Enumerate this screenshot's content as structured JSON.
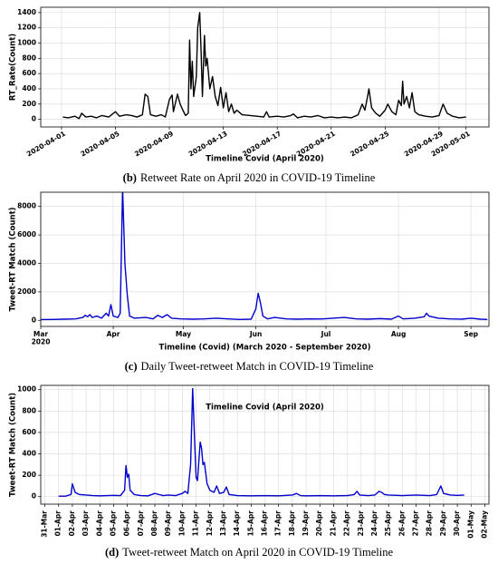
{
  "chart_data": [
    {
      "type": "line",
      "caption_label": "(b)",
      "caption": "Retweet Rate on April 2020 in COVID-19 Timeline",
      "xlabel": "Timeline Covid (April 2020)",
      "ylabel": "RT_Rate(Count)",
      "xlim": [
        -0.54,
        32.7
      ],
      "ylim": [
        -100,
        1470
      ],
      "xticks": [
        {
          "value": 1,
          "label": "2020-04-01"
        },
        {
          "value": 5,
          "label": "2020-04-05"
        },
        {
          "value": 9,
          "label": "2020-04-09"
        },
        {
          "value": 13,
          "label": "2020-04-13"
        },
        {
          "value": 17,
          "label": "2020-04-17"
        },
        {
          "value": 21,
          "label": "2020-04-21"
        },
        {
          "value": 25,
          "label": "2020-04-25"
        },
        {
          "value": 29,
          "label": "2020-04-29"
        },
        {
          "value": 31,
          "label": "2020-05-01"
        }
      ],
      "yticks": [
        0,
        200,
        400,
        600,
        800,
        1000,
        1200,
        1400
      ],
      "grid": true,
      "series": [
        {
          "color": "#000000",
          "x": [
            1.1,
            1.5,
            2,
            2.3,
            2.5,
            2.8,
            3.2,
            3.6,
            4,
            4.5,
            5,
            5.3,
            5.8,
            6.2,
            6.6,
            7,
            7.2,
            7.4,
            7.6,
            8,
            8.4,
            8.7,
            9,
            9.2,
            9.3,
            9.6,
            9.8,
            10,
            10.2,
            10.4,
            10.5,
            10.6,
            10.7,
            10.8,
            11,
            11.1,
            11.25,
            11.35,
            11.45,
            11.6,
            11.7,
            11.8,
            12,
            12.2,
            12.4,
            12.6,
            12.8,
            13,
            13.2,
            13.4,
            13.6,
            13.8,
            14,
            14.4,
            15,
            15.5,
            16,
            16.2,
            16.4,
            17,
            17.5,
            18,
            18.2,
            18.5,
            19,
            19.5,
            20,
            20.5,
            21,
            21.5,
            22,
            22.5,
            23,
            23.3,
            23.5,
            23.7,
            23.8,
            24,
            24.3,
            24.6,
            25,
            25.2,
            25.5,
            25.8,
            26,
            26.2,
            26.3,
            26.4,
            26.6,
            26.8,
            27,
            27.2,
            27.5,
            28,
            28.5,
            29,
            29.3,
            29.6,
            30,
            30.5,
            31
          ],
          "values": [
            30,
            20,
            40,
            10,
            80,
            30,
            40,
            20,
            50,
            30,
            100,
            40,
            60,
            50,
            30,
            60,
            330,
            300,
            60,
            40,
            60,
            30,
            260,
            320,
            100,
            330,
            200,
            120,
            50,
            80,
            1040,
            400,
            760,
            300,
            560,
            1200,
            1400,
            900,
            300,
            1100,
            700,
            800,
            400,
            560,
            300,
            180,
            420,
            150,
            350,
            100,
            200,
            80,
            120,
            60,
            50,
            40,
            30,
            100,
            30,
            40,
            30,
            50,
            70,
            20,
            40,
            30,
            50,
            20,
            30,
            20,
            30,
            20,
            60,
            200,
            120,
            300,
            400,
            150,
            80,
            40,
            120,
            200,
            100,
            60,
            250,
            180,
            500,
            200,
            300,
            150,
            350,
            100,
            60,
            40,
            30,
            50,
            200,
            80,
            40,
            20,
            30
          ]
        }
      ]
    },
    {
      "type": "line",
      "caption_label": "(c)",
      "caption": "Daily Tweet-retweet Match in COVID-19 Timeline",
      "xlabel": "Timeline (Covid) (March 2020 - September 2020)",
      "ylabel": "Tweet-RT Match (Count)",
      "xlim": [
        0,
        191.7
      ],
      "ylim": [
        -430,
        9000
      ],
      "xticks": [
        {
          "value": 0,
          "label": "Mar\n2020"
        },
        {
          "value": 31,
          "label": "Apr"
        },
        {
          "value": 61,
          "label": "May"
        },
        {
          "value": 92,
          "label": "Jun"
        },
        {
          "value": 122,
          "label": "Jul"
        },
        {
          "value": 153,
          "label": "Aug"
        },
        {
          "value": 184,
          "label": "Sep"
        }
      ],
      "yticks": [
        0,
        2000,
        4000,
        6000,
        8000
      ],
      "grid": true,
      "series": [
        {
          "color": "#0000cc",
          "x": [
            0,
            5,
            10,
            15,
            18,
            19,
            20,
            21,
            22,
            24,
            26,
            28,
            29,
            30,
            31,
            33,
            34,
            35,
            36,
            37,
            38,
            40,
            45,
            48,
            50,
            52,
            54,
            56,
            60,
            65,
            70,
            75,
            80,
            85,
            90,
            92,
            93,
            94,
            95,
            97,
            100,
            105,
            110,
            115,
            120,
            125,
            130,
            135,
            140,
            145,
            150,
            153,
            155,
            160,
            164,
            165,
            166,
            170,
            175,
            180,
            184,
            188,
            191
          ],
          "values": [
            50,
            60,
            80,
            100,
            200,
            350,
            250,
            400,
            200,
            300,
            150,
            500,
            300,
            1100,
            300,
            200,
            500,
            9300,
            4000,
            1800,
            300,
            150,
            200,
            100,
            350,
            200,
            400,
            150,
            100,
            80,
            100,
            150,
            100,
            60,
            80,
            800,
            1900,
            1200,
            300,
            100,
            200,
            100,
            80,
            100,
            90,
            150,
            200,
            100,
            80,
            120,
            80,
            300,
            100,
            150,
            250,
            500,
            300,
            150,
            100,
            80,
            150,
            80,
            60
          ]
        }
      ]
    },
    {
      "type": "line",
      "caption_label": "(d)",
      "caption": "Tweet-retweet Match on April 2020 in COVID-19 Timeline",
      "xlabel": "Timeline Covid (April 2020)",
      "ylabel": "Tweet-RT Match (Count)",
      "xlim": [
        -0.3,
        32.3
      ],
      "ylim": [
        -70,
        1040
      ],
      "xticks": [
        {
          "value": 0,
          "label": "31-Mar"
        },
        {
          "value": 1,
          "label": "01-Apr"
        },
        {
          "value": 2,
          "label": "02-Apr"
        },
        {
          "value": 3,
          "label": "03-Apr"
        },
        {
          "value": 4,
          "label": "04-Apr"
        },
        {
          "value": 5,
          "label": "05-Apr"
        },
        {
          "value": 6,
          "label": "06-Apr"
        },
        {
          "value": 7,
          "label": "07-Apr"
        },
        {
          "value": 8,
          "label": "08-Apr"
        },
        {
          "value": 9,
          "label": "09-Apr"
        },
        {
          "value": 10,
          "label": "10-Apr"
        },
        {
          "value": 11,
          "label": "11-Apr"
        },
        {
          "value": 12,
          "label": "12-Apr"
        },
        {
          "value": 13,
          "label": "13-Apr"
        },
        {
          "value": 14,
          "label": "14-Apr"
        },
        {
          "value": 15,
          "label": "15-Apr"
        },
        {
          "value": 16,
          "label": "16-Apr"
        },
        {
          "value": 17,
          "label": "17-Apr"
        },
        {
          "value": 18,
          "label": "18-Apr"
        },
        {
          "value": 19,
          "label": "19-Apr"
        },
        {
          "value": 20,
          "label": "20-Apr"
        },
        {
          "value": 21,
          "label": "21-Apr"
        },
        {
          "value": 22,
          "label": "22-Apr"
        },
        {
          "value": 23,
          "label": "23-Apr"
        },
        {
          "value": 24,
          "label": "24-Apr"
        },
        {
          "value": 25,
          "label": "25-Apr"
        },
        {
          "value": 26,
          "label": "26-Apr"
        },
        {
          "value": 27,
          "label": "27-Apr"
        },
        {
          "value": 28,
          "label": "28-Apr"
        },
        {
          "value": 29,
          "label": "29-Apr"
        },
        {
          "value": 30,
          "label": "30-Apr"
        },
        {
          "value": 31,
          "label": "01-May"
        },
        {
          "value": 32,
          "label": "02-May"
        }
      ],
      "yticks": [
        0,
        200,
        400,
        600,
        800,
        1000
      ],
      "grid": true,
      "series": [
        {
          "color": "#0000cc",
          "x": [
            1,
            1.5,
            1.9,
            2,
            2.2,
            2.5,
            3,
            3.5,
            4,
            4.5,
            5,
            5.5,
            5.8,
            5.9,
            6,
            6.1,
            6.2,
            6.5,
            7,
            7.5,
            8,
            8.3,
            8.6,
            9,
            9.5,
            10,
            10.2,
            10.4,
            10.6,
            10.75,
            10.9,
            11,
            11.1,
            11.3,
            11.4,
            11.5,
            11.6,
            11.8,
            12,
            12.3,
            12.5,
            12.7,
            13,
            13.2,
            13.4,
            13.7,
            14,
            15,
            16,
            17,
            18,
            18.3,
            18.6,
            19,
            20,
            21,
            22,
            22.5,
            22.7,
            22.9,
            23.5,
            24,
            24.3,
            24.5,
            24.7,
            25,
            26,
            27,
            28,
            28.5,
            28.8,
            29,
            29.5,
            30,
            30.5
          ],
          "values": [
            5,
            5,
            20,
            120,
            40,
            20,
            15,
            10,
            8,
            10,
            12,
            10,
            60,
            290,
            180,
            210,
            60,
            20,
            10,
            8,
            30,
            20,
            10,
            15,
            10,
            30,
            50,
            30,
            300,
            1010,
            500,
            180,
            150,
            510,
            450,
            300,
            320,
            120,
            60,
            40,
            100,
            30,
            40,
            90,
            20,
            15,
            10,
            8,
            10,
            8,
            15,
            30,
            10,
            8,
            10,
            8,
            10,
            20,
            50,
            15,
            10,
            15,
            50,
            40,
            20,
            15,
            10,
            15,
            10,
            20,
            100,
            30,
            15,
            12,
            15
          ]
        }
      ]
    }
  ]
}
